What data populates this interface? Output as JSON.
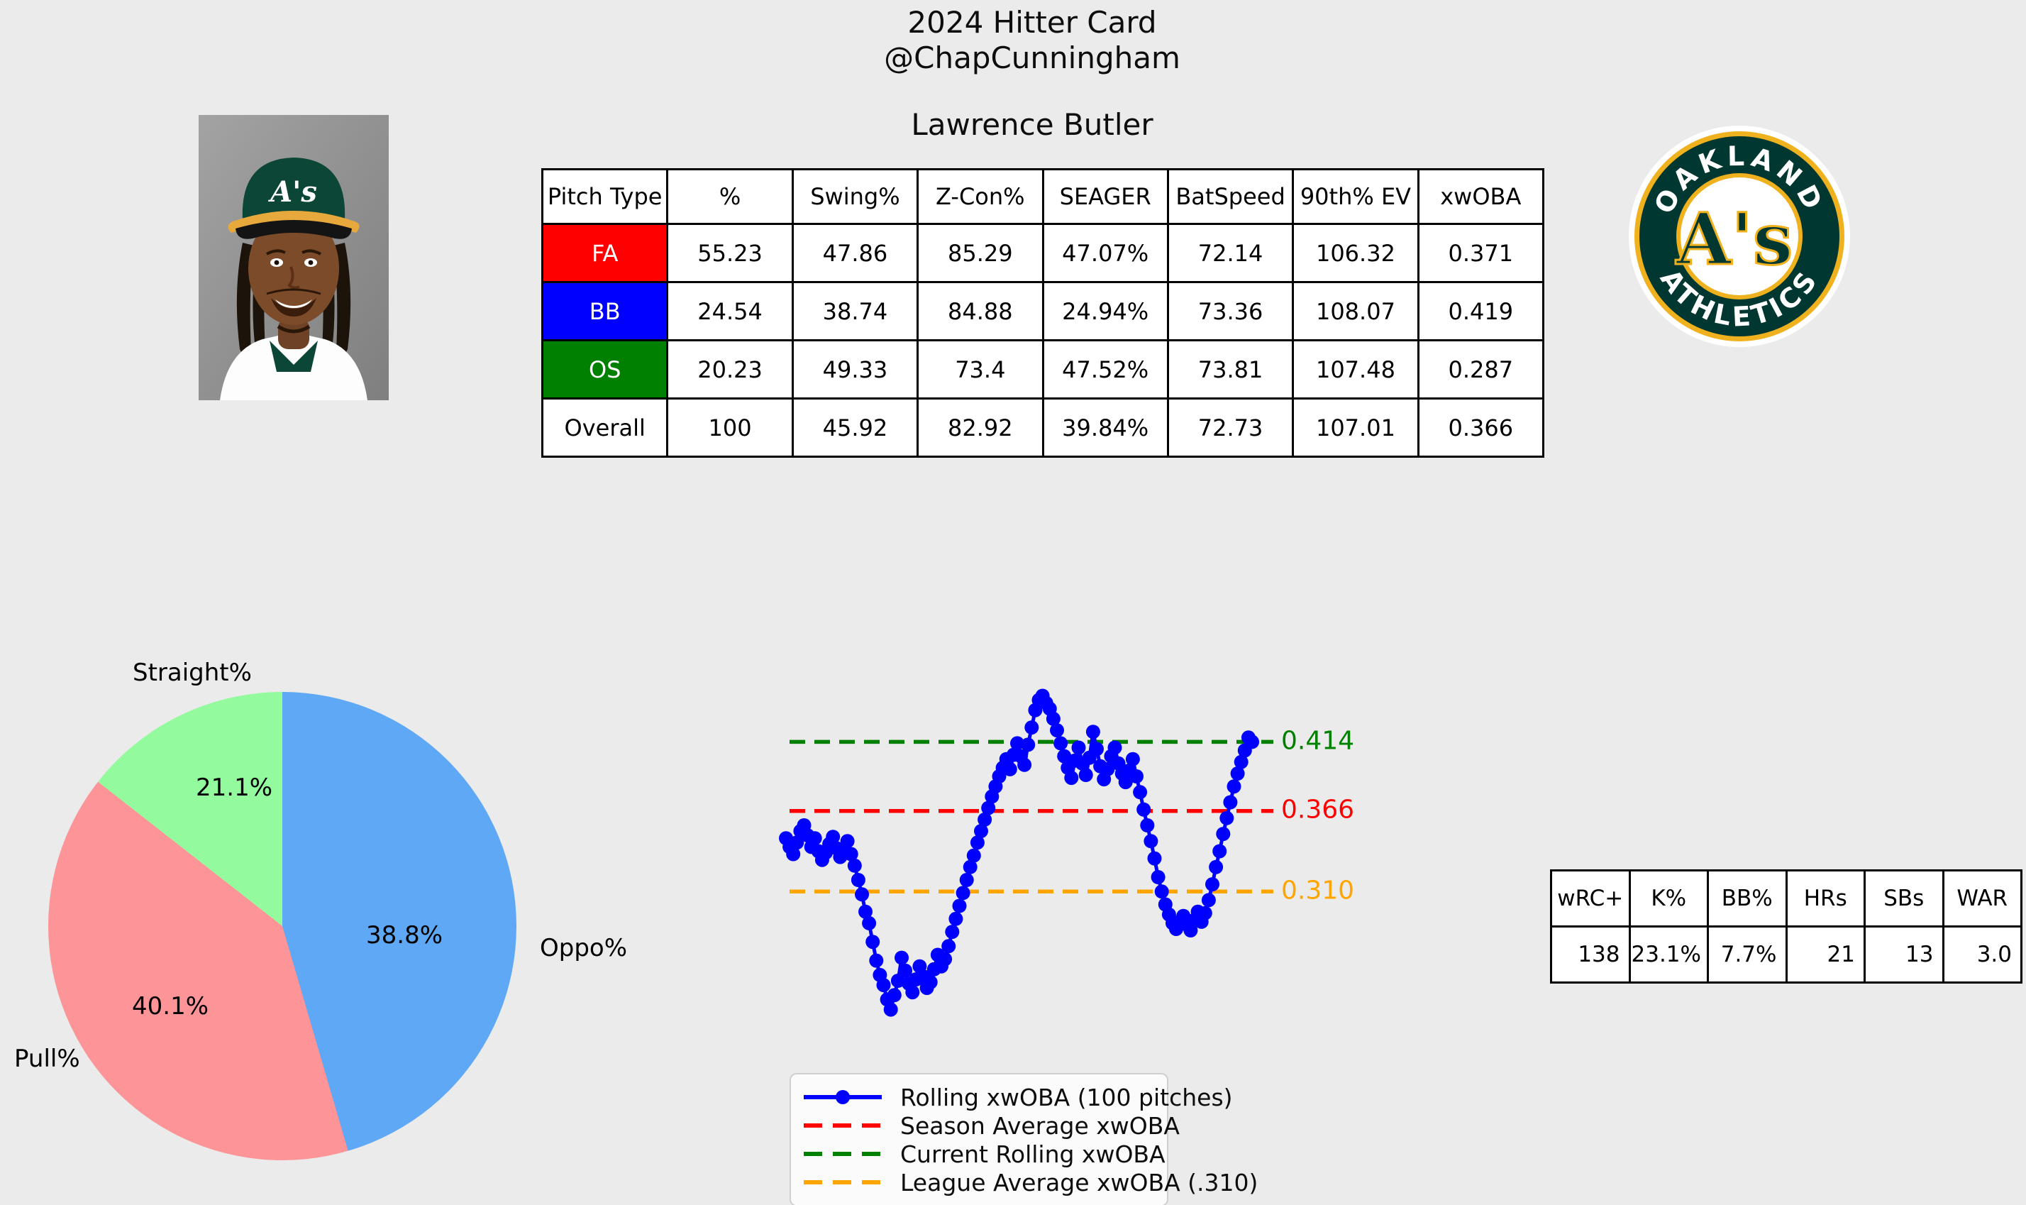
{
  "header": {
    "title_line1": "2024 Hitter Card",
    "title_line2": "@ChapCunningham",
    "player_name": "Lawrence Butler"
  },
  "pitch_table": {
    "columns": [
      "Pitch Type",
      "%",
      "Swing%",
      "Z-Con%",
      "SEAGER",
      "BatSpeed",
      "90th% EV",
      "xwOBA"
    ],
    "rows": [
      {
        "pitch_type": "FA",
        "color": "#ff0000",
        "text_color": "#ffffff",
        "values": [
          "55.23",
          "47.86",
          "85.29",
          "47.07%",
          "72.14",
          "106.32",
          "0.371"
        ]
      },
      {
        "pitch_type": "BB",
        "color": "#0000ff",
        "text_color": "#ffffff",
        "values": [
          "24.54",
          "38.74",
          "84.88",
          "24.94%",
          "73.36",
          "108.07",
          "0.419"
        ]
      },
      {
        "pitch_type": "OS",
        "color": "#008000",
        "text_color": "#ffffff",
        "values": [
          "20.23",
          "49.33",
          "73.4",
          "47.52%",
          "73.81",
          "107.48",
          "0.287"
        ]
      },
      {
        "pitch_type": "Overall",
        "color": "#ffffff",
        "text_color": "#000000",
        "values": [
          "100",
          "45.92",
          "82.92",
          "39.84%",
          "72.73",
          "107.01",
          "0.366"
        ]
      }
    ]
  },
  "team_logo": {
    "top_text": "OAKLAND",
    "bottom_text": "ATHLETICS",
    "monogram": "A's",
    "green": "#003831",
    "gold": "#efb21e"
  },
  "chart_data": {
    "pie": {
      "type": "pie",
      "start_angle_deg": 24,
      "direction": "clockwise",
      "slices": [
        {
          "label": "Oppo%",
          "value": 38.8,
          "pct_label": "38.8%",
          "color": "#5fa8f5"
        },
        {
          "label": "Pull%",
          "value": 40.1,
          "pct_label": "40.1%",
          "color": "#fd9598"
        },
        {
          "label": "Straight%",
          "value": 21.1,
          "pct_label": "21.1%",
          "color": "#93fa9e"
        }
      ]
    },
    "rolling": {
      "type": "line",
      "xlabel": "",
      "ylabel": "",
      "ylim": [
        0.19,
        0.47
      ],
      "grid": false,
      "legend_position": "lower-left",
      "series": [
        {
          "name": "Rolling xwOBA (100 pitches)",
          "color": "#0000ff",
          "values": [
            0.347,
            0.341,
            0.336,
            0.344,
            0.352,
            0.356,
            0.349,
            0.341,
            0.347,
            0.338,
            0.332,
            0.337,
            0.343,
            0.348,
            0.34,
            0.334,
            0.339,
            0.345,
            0.336,
            0.328,
            0.318,
            0.308,
            0.296,
            0.288,
            0.275,
            0.262,
            0.252,
            0.245,
            0.235,
            0.228,
            0.238,
            0.248,
            0.264,
            0.255,
            0.246,
            0.24,
            0.249,
            0.258,
            0.251,
            0.243,
            0.247,
            0.256,
            0.266,
            0.258,
            0.263,
            0.272,
            0.282,
            0.291,
            0.3,
            0.309,
            0.318,
            0.327,
            0.335,
            0.344,
            0.352,
            0.36,
            0.368,
            0.376,
            0.383,
            0.39,
            0.396,
            0.402,
            0.395,
            0.405,
            0.413,
            0.404,
            0.398,
            0.412,
            0.424,
            0.436,
            0.443,
            0.446,
            0.441,
            0.437,
            0.43,
            0.422,
            0.413,
            0.404,
            0.396,
            0.389,
            0.401,
            0.41,
            0.399,
            0.391,
            0.403,
            0.421,
            0.409,
            0.397,
            0.388,
            0.395,
            0.404,
            0.41,
            0.399,
            0.392,
            0.386,
            0.394,
            0.402,
            0.39,
            0.379,
            0.367,
            0.356,
            0.345,
            0.333,
            0.32,
            0.31,
            0.301,
            0.294,
            0.288,
            0.284,
            0.289,
            0.293,
            0.287,
            0.283,
            0.29,
            0.296,
            0.289,
            0.295,
            0.304,
            0.315,
            0.327,
            0.338,
            0.35,
            0.361,
            0.372,
            0.383,
            0.392,
            0.4,
            0.408,
            0.417,
            0.414
          ]
        }
      ],
      "reference_lines": [
        {
          "name": "Current Rolling xwOBA",
          "value": 0.414,
          "label": "0.414",
          "color": "#008000"
        },
        {
          "name": "Season Average xwOBA",
          "value": 0.366,
          "label": "0.366",
          "color": "#ff0000"
        },
        {
          "name": "League Average xwOBA (.310)",
          "value": 0.31,
          "label": "0.310",
          "color": "#ffa500"
        }
      ]
    }
  },
  "legend": {
    "items": [
      {
        "label": "Rolling xwOBA (100 pitches)",
        "color": "#0000ff",
        "style": "line-marker"
      },
      {
        "label": "Season Average xwOBA",
        "color": "#ff0000",
        "style": "dashed"
      },
      {
        "label": "Current Rolling xwOBA",
        "color": "#008000",
        "style": "dashed"
      },
      {
        "label": "League Average xwOBA (.310)",
        "color": "#ffa500",
        "style": "dashed"
      }
    ]
  },
  "season_stats": {
    "columns": [
      "wRC+",
      "K%",
      "BB%",
      "HRs",
      "SBs",
      "WAR"
    ],
    "values": [
      "138",
      "23.1%",
      "7.7%",
      "21",
      "13",
      "3.0"
    ]
  }
}
